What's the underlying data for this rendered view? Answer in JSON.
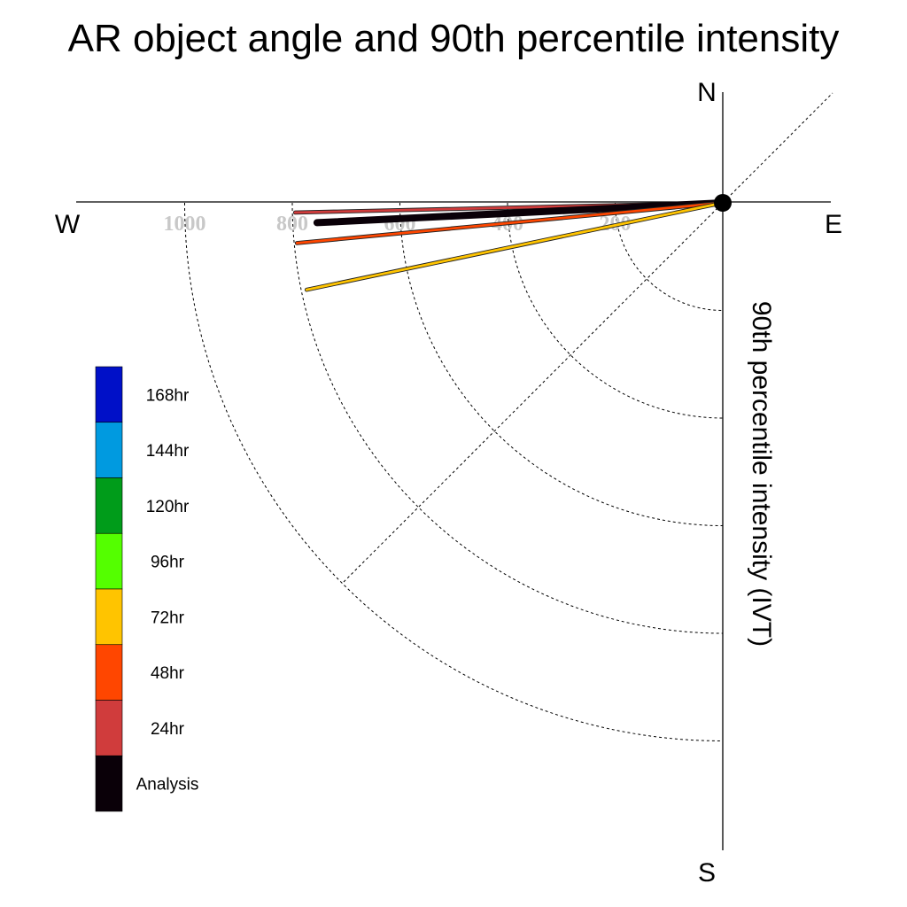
{
  "chart_data": {
    "type": "polar-line",
    "title": "AR object angle and 90th percentile intensity",
    "ylabel": "90th percentile intensity (IVT)",
    "compass": {
      "north": "N",
      "south": "S",
      "east": "E",
      "west": "W"
    },
    "radial_ticks": [
      "200",
      "400",
      "600",
      "800",
      "1000"
    ],
    "radial_tick_values": [
      200,
      400,
      600,
      800,
      1000
    ],
    "rlim": [
      0,
      1200
    ],
    "grid": true,
    "legend_position": "lower-left",
    "legend": [
      {
        "label": "168hr",
        "color": "#0010c8"
      },
      {
        "label": "144hr",
        "color": "#009ae0"
      },
      {
        "label": "120hr",
        "color": "#009c1a"
      },
      {
        "label": "96hr",
        "color": "#54ff00"
      },
      {
        "label": "72hr",
        "color": "#ffc400"
      },
      {
        "label": "48hr",
        "color": "#ff4600"
      },
      {
        "label": "24hr",
        "color": "#d03c3c"
      },
      {
        "label": "Analysis",
        "color": "#0a0008"
      }
    ],
    "series": [
      {
        "name": "144hr",
        "color": "#3aaee0",
        "angle_deg": -177.4,
        "intensity": 705
      },
      {
        "name": "24hr",
        "color": "#d03c3c",
        "angle_deg": -178.7,
        "intensity": 795
      },
      {
        "name": "Analysis",
        "color": "#0a0008",
        "angle_deg": -177.2,
        "intensity": 755
      },
      {
        "name": "48hr",
        "color": "#ff4600",
        "angle_deg": -174.6,
        "intensity": 795
      },
      {
        "name": "72hr",
        "color": "#ffc400",
        "angle_deg": -168.2,
        "intensity": 790
      }
    ]
  }
}
